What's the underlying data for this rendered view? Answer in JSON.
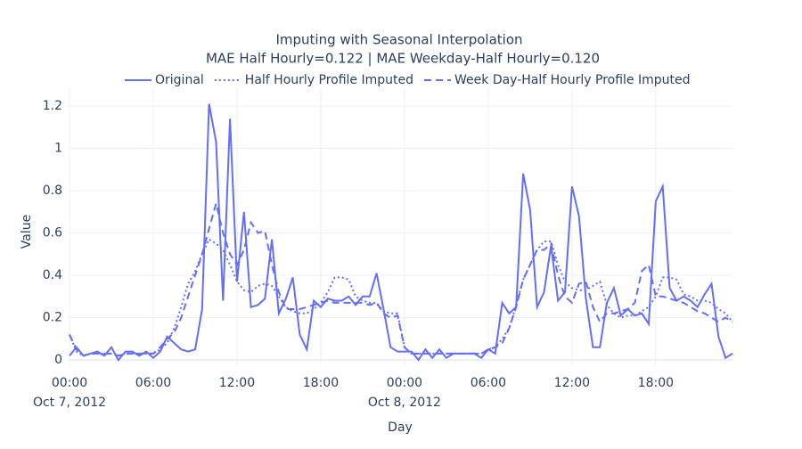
{
  "chart_data": {
    "type": "line",
    "title": "Imputing with Seasonal Interpolation",
    "subtitle": "MAE Half Hourly=0.122 | MAE Weekday-Half Hourly=0.120",
    "x_label": "Day",
    "y_label": "Value",
    "x": [
      "2012-10-07T00:00",
      "2012-10-07T00:30",
      "2012-10-07T01:00",
      "2012-10-07T01:30",
      "2012-10-07T02:00",
      "2012-10-07T02:30",
      "2012-10-07T03:00",
      "2012-10-07T03:30",
      "2012-10-07T04:00",
      "2012-10-07T04:30",
      "2012-10-07T05:00",
      "2012-10-07T05:30",
      "2012-10-07T06:00",
      "2012-10-07T06:30",
      "2012-10-07T07:00",
      "2012-10-07T07:30",
      "2012-10-07T08:00",
      "2012-10-07T08:30",
      "2012-10-07T09:00",
      "2012-10-07T09:30",
      "2012-10-07T10:00",
      "2012-10-07T10:30",
      "2012-10-07T11:00",
      "2012-10-07T11:30",
      "2012-10-07T12:00",
      "2012-10-07T12:30",
      "2012-10-07T13:00",
      "2012-10-07T13:30",
      "2012-10-07T14:00",
      "2012-10-07T14:30",
      "2012-10-07T15:00",
      "2012-10-07T15:30",
      "2012-10-07T16:00",
      "2012-10-07T16:30",
      "2012-10-07T17:00",
      "2012-10-07T17:30",
      "2012-10-07T18:00",
      "2012-10-07T18:30",
      "2012-10-07T19:00",
      "2012-10-07T19:30",
      "2012-10-07T20:00",
      "2012-10-07T20:30",
      "2012-10-07T21:00",
      "2012-10-07T21:30",
      "2012-10-07T22:00",
      "2012-10-07T22:30",
      "2012-10-07T23:00",
      "2012-10-07T23:30",
      "2012-10-08T00:00",
      "2012-10-08T00:30",
      "2012-10-08T01:00",
      "2012-10-08T01:30",
      "2012-10-08T02:00",
      "2012-10-08T02:30",
      "2012-10-08T03:00",
      "2012-10-08T03:30",
      "2012-10-08T04:00",
      "2012-10-08T04:30",
      "2012-10-08T05:00",
      "2012-10-08T05:30",
      "2012-10-08T06:00",
      "2012-10-08T06:30",
      "2012-10-08T07:00",
      "2012-10-08T07:30",
      "2012-10-08T08:00",
      "2012-10-08T08:30",
      "2012-10-08T09:00",
      "2012-10-08T09:30",
      "2012-10-08T10:00",
      "2012-10-08T10:30",
      "2012-10-08T11:00",
      "2012-10-08T11:30",
      "2012-10-08T12:00",
      "2012-10-08T12:30",
      "2012-10-08T13:00",
      "2012-10-08T13:30",
      "2012-10-08T14:00",
      "2012-10-08T14:30",
      "2012-10-08T15:00",
      "2012-10-08T15:30",
      "2012-10-08T16:00",
      "2012-10-08T16:30",
      "2012-10-08T17:00",
      "2012-10-08T17:30",
      "2012-10-08T18:00",
      "2012-10-08T18:30",
      "2012-10-08T19:00",
      "2012-10-08T19:30",
      "2012-10-08T20:00",
      "2012-10-08T20:30",
      "2012-10-08T21:00",
      "2012-10-08T21:30",
      "2012-10-08T22:00",
      "2012-10-08T22:30",
      "2012-10-08T23:00",
      "2012-10-08T23:30"
    ],
    "series": [
      {
        "name": "Original",
        "color": "#636efa",
        "dash": "solid",
        "values": [
          0.02,
          0.06,
          0.02,
          0.03,
          0.04,
          0.02,
          0.06,
          0.0,
          0.04,
          0.04,
          0.02,
          0.04,
          0.01,
          0.04,
          0.11,
          0.08,
          0.05,
          0.04,
          0.05,
          0.24,
          1.21,
          1.03,
          0.28,
          1.14,
          0.37,
          0.7,
          0.25,
          0.26,
          0.29,
          0.57,
          0.22,
          0.29,
          0.39,
          0.12,
          0.05,
          0.28,
          0.25,
          0.29,
          0.28,
          0.28,
          0.3,
          0.26,
          0.3,
          0.3,
          0.41,
          0.24,
          0.06,
          0.04,
          0.04,
          0.04,
          0.0,
          0.05,
          0.01,
          0.05,
          0.01,
          0.03,
          0.03,
          0.03,
          0.03,
          0.01,
          0.05,
          0.03,
          0.27,
          0.22,
          0.25,
          0.88,
          0.71,
          0.25,
          0.32,
          0.54,
          0.28,
          0.32,
          0.82,
          0.68,
          0.29,
          0.06,
          0.06,
          0.27,
          0.34,
          0.21,
          0.24,
          0.21,
          0.22,
          0.17,
          0.75,
          0.82,
          0.34,
          0.28,
          0.3,
          0.28,
          0.25,
          0.31,
          0.36,
          0.11,
          0.01,
          0.03
        ]
      },
      {
        "name": "Half Hourly Profile Imputed",
        "color": "#636efa",
        "dash": "dot",
        "values": [
          0.12,
          0.04,
          0.02,
          0.03,
          0.03,
          0.03,
          0.03,
          0.02,
          0.03,
          0.03,
          0.03,
          0.03,
          0.03,
          0.05,
          0.08,
          0.15,
          0.25,
          0.36,
          0.42,
          0.5,
          0.57,
          0.55,
          0.52,
          0.45,
          0.37,
          0.33,
          0.32,
          0.35,
          0.36,
          0.35,
          0.3,
          0.25,
          0.23,
          0.22,
          0.22,
          0.24,
          0.27,
          0.32,
          0.39,
          0.39,
          0.38,
          0.3,
          0.28,
          0.27,
          0.27,
          0.23,
          0.22,
          0.22,
          0.06,
          0.03,
          0.03,
          0.03,
          0.03,
          0.03,
          0.03,
          0.03,
          0.03,
          0.03,
          0.03,
          0.03,
          0.05,
          0.06,
          0.1,
          0.15,
          0.26,
          0.38,
          0.45,
          0.52,
          0.56,
          0.56,
          0.45,
          0.37,
          0.34,
          0.33,
          0.33,
          0.35,
          0.37,
          0.26,
          0.22,
          0.2,
          0.21,
          0.21,
          0.23,
          0.25,
          0.3,
          0.39,
          0.39,
          0.38,
          0.31,
          0.3,
          0.28,
          0.28,
          0.27,
          0.24,
          0.22,
          0.18
        ]
      },
      {
        "name": "Week Day-Half Hourly Profile Imputed",
        "color": "#636efa",
        "dash": "dash",
        "values": [
          0.12,
          0.05,
          0.02,
          0.03,
          0.03,
          0.03,
          0.03,
          0.02,
          0.03,
          0.03,
          0.03,
          0.03,
          0.03,
          0.06,
          0.1,
          0.13,
          0.2,
          0.3,
          0.4,
          0.5,
          0.62,
          0.74,
          0.6,
          0.5,
          0.45,
          0.52,
          0.65,
          0.6,
          0.61,
          0.45,
          0.32,
          0.24,
          0.24,
          0.24,
          0.25,
          0.26,
          0.27,
          0.28,
          0.27,
          0.27,
          0.27,
          0.27,
          0.27,
          0.26,
          0.27,
          0.22,
          0.2,
          0.21,
          0.06,
          0.03,
          0.03,
          0.03,
          0.03,
          0.03,
          0.03,
          0.03,
          0.03,
          0.03,
          0.03,
          0.03,
          0.05,
          0.06,
          0.08,
          0.15,
          0.25,
          0.38,
          0.45,
          0.52,
          0.52,
          0.55,
          0.4,
          0.3,
          0.27,
          0.36,
          0.37,
          0.25,
          0.18,
          0.22,
          0.22,
          0.23,
          0.24,
          0.27,
          0.42,
          0.45,
          0.3,
          0.3,
          0.29,
          0.28,
          0.27,
          0.25,
          0.23,
          0.22,
          0.2,
          0.18,
          0.2,
          0.18
        ]
      }
    ],
    "xlim": [
      "2012-10-07T00:00",
      "2012-10-08T23:30"
    ],
    "xticks": [
      {
        "value": "2012-10-07T00:00",
        "label": "00:00",
        "date": "Oct 7, 2012"
      },
      {
        "value": "2012-10-07T06:00",
        "label": "06:00"
      },
      {
        "value": "2012-10-07T12:00",
        "label": "12:00"
      },
      {
        "value": "2012-10-07T18:00",
        "label": "18:00"
      },
      {
        "value": "2012-10-08T00:00",
        "label": "00:00",
        "date": "Oct 8, 2012"
      },
      {
        "value": "2012-10-08T06:00",
        "label": "06:00"
      },
      {
        "value": "2012-10-08T12:00",
        "label": "12:00"
      },
      {
        "value": "2012-10-08T18:00",
        "label": "18:00"
      }
    ],
    "ylim": [
      -0.025,
      1.28
    ],
    "yticks": [
      0,
      0.2,
      0.4,
      0.6,
      0.8,
      1,
      1.2
    ],
    "grid": true
  }
}
